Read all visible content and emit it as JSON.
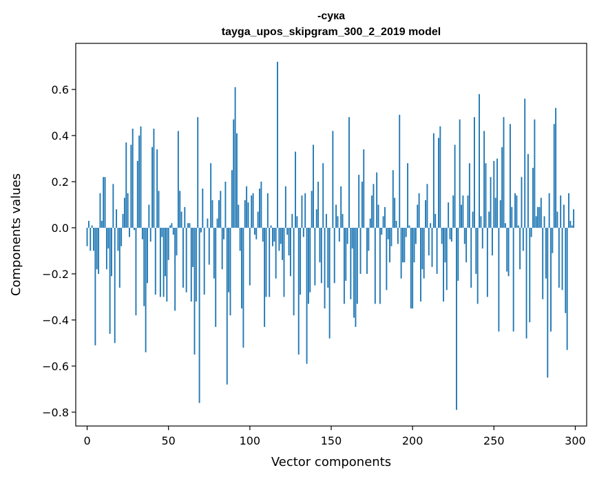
{
  "chart_data": {
    "type": "bar",
    "title": "-сука",
    "subtitle": "tayga_upos_skipgram_300_2_2019 model",
    "xlabel": "Vector components",
    "ylabel": "Components values",
    "xlim": [
      -7,
      307
    ],
    "ylim": [
      -0.86,
      0.8
    ],
    "xticks": [
      0,
      50,
      100,
      150,
      200,
      250,
      300
    ],
    "yticks": [
      -0.8,
      -0.6,
      -0.4,
      -0.2,
      0.0,
      0.2,
      0.4,
      0.6
    ],
    "ytick_labels": [
      "−0.8",
      "−0.6",
      "−0.4",
      "−0.2",
      "0.0",
      "0.2",
      "0.4",
      "0.6"
    ],
    "grid": false,
    "bar_color": "#1f77b4",
    "values": [
      -0.08,
      0.03,
      -0.1,
      0.01,
      -0.1,
      -0.51,
      -0.18,
      -0.2,
      0.15,
      0.03,
      0.22,
      0.22,
      -0.18,
      -0.09,
      -0.46,
      -0.21,
      0.19,
      -0.5,
      0.08,
      -0.1,
      -0.26,
      -0.08,
      0.06,
      0.13,
      0.37,
      0.15,
      -0.04,
      0.36,
      0.43,
      -0.01,
      -0.38,
      0.29,
      0.4,
      0.44,
      -0.05,
      -0.34,
      -0.54,
      -0.24,
      0.1,
      -0.06,
      0.35,
      0.43,
      -0.29,
      0.34,
      0.16,
      -0.3,
      -0.04,
      -0.3,
      -0.21,
      -0.32,
      -0.14,
      0.01,
      0.02,
      -0.03,
      -0.36,
      -0.12,
      0.42,
      0.16,
      0.07,
      -0.26,
      0.09,
      -0.28,
      0.02,
      0.02,
      -0.32,
      -0.17,
      -0.55,
      -0.32,
      0.48,
      -0.76,
      -0.02,
      0.17,
      -0.29,
      0.0,
      0.04,
      -0.16,
      0.28,
      0.12,
      -0.22,
      -0.43,
      0.04,
      0.12,
      0.16,
      -0.18,
      -0.05,
      0.2,
      -0.68,
      -0.28,
      -0.38,
      0.25,
      0.47,
      0.61,
      0.41,
      0.1,
      -0.1,
      -0.35,
      -0.52,
      0.12,
      0.18,
      0.11,
      -0.25,
      0.14,
      0.15,
      -0.03,
      -0.05,
      0.07,
      0.17,
      0.2,
      -0.06,
      -0.43,
      -0.3,
      0.15,
      -0.3,
      0.01,
      -0.08,
      -0.06,
      -0.22,
      0.72,
      -0.1,
      -0.07,
      -0.14,
      -0.3,
      0.18,
      -0.03,
      -0.12,
      -0.21,
      0.06,
      -0.38,
      0.33,
      0.05,
      -0.55,
      -0.29,
      0.14,
      -0.04,
      0.15,
      -0.59,
      -0.33,
      -0.28,
      0.16,
      0.36,
      -0.25,
      0.08,
      0.2,
      -0.15,
      -0.24,
      0.28,
      -0.35,
      0.06,
      -0.26,
      -0.48,
      0.0,
      0.42,
      -0.24,
      0.1,
      0.05,
      -0.06,
      0.18,
      0.06,
      -0.33,
      -0.23,
      -0.07,
      0.48,
      -0.31,
      -0.09,
      -0.39,
      -0.43,
      -0.33,
      0.23,
      -0.2,
      0.2,
      0.34,
      0.0,
      -0.2,
      -0.1,
      0.04,
      0.14,
      0.19,
      -0.33,
      0.24,
      0.1,
      -0.33,
      -0.03,
      0.05,
      0.09,
      -0.27,
      -0.05,
      -0.15,
      -0.08,
      0.25,
      0.13,
      0.03,
      -0.07,
      0.49,
      -0.22,
      -0.15,
      -0.15,
      -0.04,
      0.28,
      0.01,
      -0.35,
      -0.35,
      -0.15,
      -0.07,
      0.1,
      0.15,
      -0.32,
      -0.18,
      -0.22,
      0.12,
      0.19,
      -0.12,
      0.02,
      -0.17,
      0.41,
      0.06,
      -0.2,
      0.39,
      0.44,
      -0.07,
      -0.32,
      -0.15,
      -0.27,
      0.11,
      -0.05,
      -0.06,
      0.14,
      0.36,
      -0.79,
      -0.23,
      0.47,
      0.1,
      0.14,
      -0.07,
      -0.15,
      0.14,
      0.28,
      -0.26,
      0.07,
      0.48,
      -0.2,
      -0.33,
      0.58,
      0.05,
      -0.09,
      0.42,
      0.28,
      -0.3,
      0.07,
      0.22,
      -0.12,
      0.29,
      0.13,
      0.3,
      -0.45,
      0.12,
      0.35,
      0.48,
      0.02,
      -0.19,
      -0.21,
      0.45,
      0.09,
      -0.45,
      0.15,
      0.14,
      0.01,
      -0.18,
      0.22,
      -0.1,
      0.56,
      -0.48,
      0.32,
      -0.41,
      -0.04,
      0.26,
      0.47,
      0.05,
      0.09,
      0.09,
      0.13,
      -0.31,
      0.05,
      -0.22,
      -0.65,
      0.15,
      -0.45,
      -0.11,
      0.45,
      0.52,
      0.07,
      -0.26,
      0.14,
      -0.27,
      0.1,
      -0.37,
      -0.53,
      0.15,
      0.03,
      0.01,
      0.08
    ]
  }
}
